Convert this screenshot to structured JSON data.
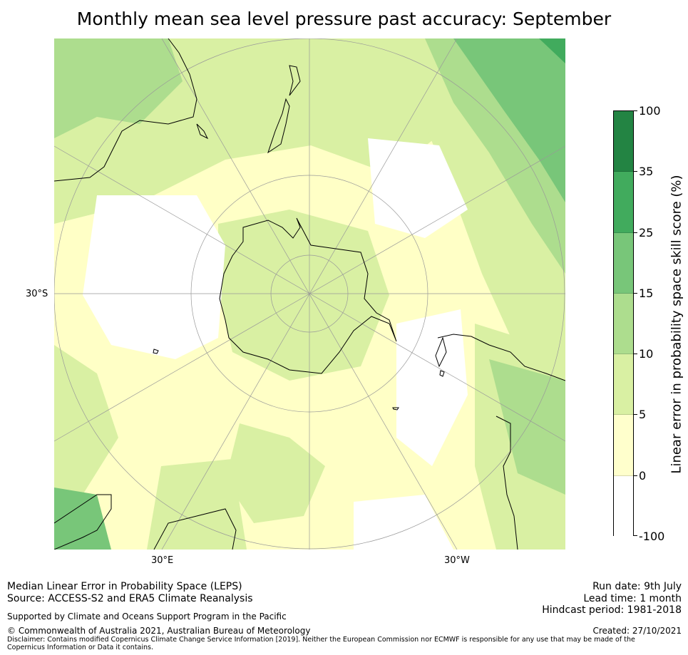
{
  "title": "Monthly mean sea level pressure past accuracy: September",
  "map": {
    "projection": "south-polar-stereographic",
    "lat_labels": [
      "30°S"
    ],
    "lon_labels": [
      "30°E",
      "30°W"
    ],
    "land_outline_color": "#000000",
    "grid_color": "#999999"
  },
  "colorbar": {
    "label": "Linear error in probability space skill score (%)",
    "ticks": [
      "100",
      "35",
      "25",
      "15",
      "10",
      "5",
      "0",
      "-100"
    ],
    "bins": [
      {
        "range": "35 to 100",
        "color": "#238443"
      },
      {
        "range": "25 to 35",
        "color": "#41ab5d"
      },
      {
        "range": "15 to 25",
        "color": "#78c679"
      },
      {
        "range": "10 to 15",
        "color": "#addd8e"
      },
      {
        "range": "5 to 10",
        "color": "#d9f0a3"
      },
      {
        "range": "0 to 5",
        "color": "#ffffcc"
      },
      {
        "range": "-100 to 0",
        "color": "#ffffff"
      }
    ]
  },
  "footer": {
    "line1": "Median Linear Error in Probability Space (LEPS)",
    "line2": "Source: ACCESS-S2 and ERA5 Climate Reanalysis",
    "support": "Supported by Climate and Oceans Support Program in the Pacific",
    "copyright": "© Commonwealth of Australia 2021, Australian Bureau of Meteorology",
    "disclaimer": "Disclaimer: Contains modified Copernicus Climate Change Service Information [2019]. Neither the European Commission nor ECMWF is responsible for any use that may be made of the Copernicus Information or Data it contains.",
    "run_date": "Run date: 9th July",
    "lead_time": "Lead time: 1 month",
    "hindcast": "Hindcast period: 1981-2018",
    "created": "Created: 27/10/2021"
  }
}
